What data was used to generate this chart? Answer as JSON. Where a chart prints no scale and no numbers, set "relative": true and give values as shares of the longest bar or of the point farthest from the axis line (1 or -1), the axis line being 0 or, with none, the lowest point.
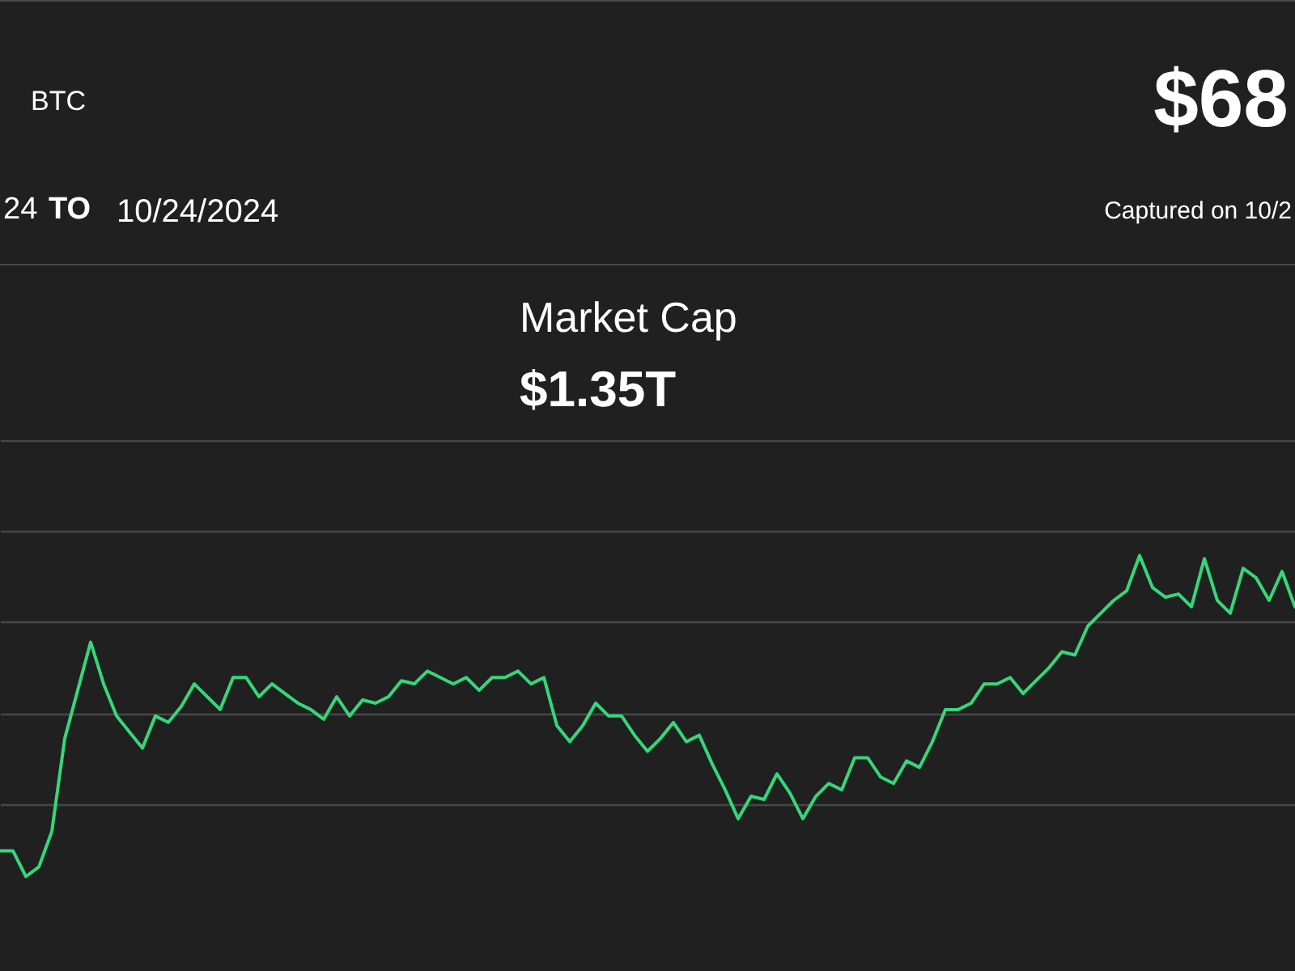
{
  "chart_data": {
    "type": "line",
    "title": "BTC",
    "subtitle": "$68",
    "annotations": [
      "24",
      "TO",
      "10/24/2024",
      "Captured on 10/2",
      "Market Cap",
      "$1.35T"
    ],
    "categories": [
      null,
      null,
      null,
      null,
      null,
      null,
      null,
      null,
      null,
      null,
      null,
      null,
      null,
      null,
      null,
      null,
      null,
      null,
      null,
      null,
      null,
      null,
      null,
      null,
      null,
      null,
      null,
      null,
      null,
      null,
      null,
      null,
      null,
      null,
      null,
      null,
      null,
      null,
      null,
      null,
      null,
      null,
      null,
      null,
      null,
      null,
      null,
      null,
      null,
      null,
      null,
      null,
      null,
      null,
      null,
      null,
      null,
      null,
      null,
      null,
      null,
      null,
      null,
      null,
      null,
      null,
      null,
      null,
      null,
      null,
      null,
      null,
      null,
      null,
      null,
      null,
      null,
      null,
      null,
      null,
      null,
      null,
      null,
      null,
      null,
      null,
      null,
      null,
      null,
      null,
      null,
      null,
      null,
      null,
      null,
      null,
      null,
      null,
      null,
      null,
      null
    ],
    "values": [
      0.08,
      0.08,
      0,
      0.03,
      0.14,
      0.43,
      0.58,
      0.73,
      0.6,
      0.5,
      0.45,
      0.4,
      0.5,
      0.48,
      0.53,
      0.6,
      0.56,
      0.52,
      0.62,
      0.62,
      0.56,
      0.6,
      0.57,
      0.54,
      0.52,
      0.49,
      0.56,
      0.5,
      0.55,
      0.54,
      0.56,
      0.61,
      0.6,
      0.64,
      0.62,
      0.6,
      0.62,
      0.58,
      0.62,
      0.62,
      0.64,
      0.6,
      0.62,
      0.47,
      0.42,
      0.47,
      0.54,
      0.5,
      0.5,
      0.44,
      0.39,
      0.43,
      0.48,
      0.42,
      0.44,
      0.35,
      0.27,
      0.18,
      0.25,
      0.24,
      0.32,
      0.26,
      0.18,
      0.25,
      0.29,
      0.27,
      0.37,
      0.37,
      0.31,
      0.29,
      0.36,
      0.34,
      0.42,
      0.52,
      0.52,
      0.54,
      0.6,
      0.6,
      0.62,
      0.57,
      0.61,
      0.65,
      0.7,
      0.69,
      0.78,
      0.82,
      0.86,
      0.89,
      1,
      0.9,
      0.87,
      0.88,
      0.84,
      0.99,
      0.86,
      0.82,
      0.96,
      0.93,
      0.86,
      0.95,
      0.84
    ],
    "color": "#35d779",
    "relative": true,
    "grid": "y"
  }
}
